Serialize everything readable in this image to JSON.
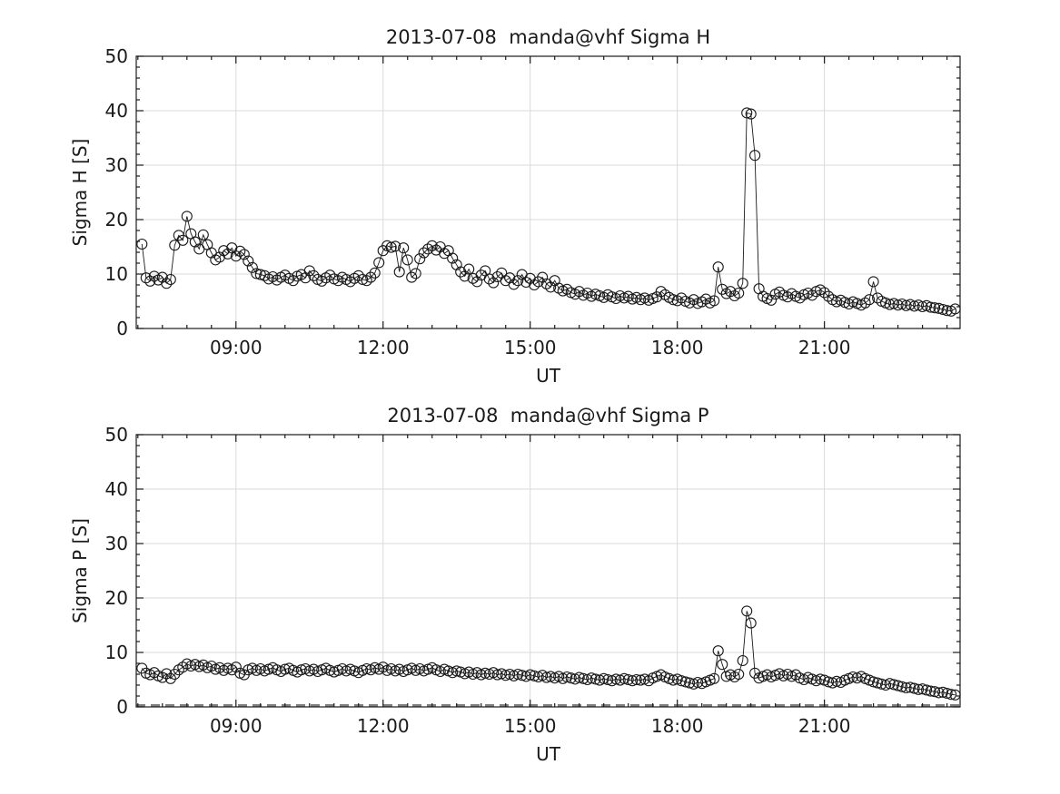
{
  "figure": {
    "background": "#ffffff",
    "text_color": "#1a1a1a",
    "grid_color": "#d9d9d9",
    "axis_color": "#1a1a1a",
    "marker_color": "#1a1a1a",
    "dashed_line_color": "#808080"
  },
  "chart_data": [
    {
      "type": "line",
      "title": "2013-07-08  manda@vhf Sigma H",
      "xlabel": "UT",
      "ylabel": "Sigma H [S]",
      "ylim": [
        0,
        50
      ],
      "yticks": [
        0,
        10,
        20,
        30,
        40,
        50
      ],
      "minor_y_step": 2,
      "xlim_minutes": [
        418,
        1426
      ],
      "xticks": [
        {
          "minute": 540,
          "label": "09:00"
        },
        {
          "minute": 720,
          "label": "12:00"
        },
        {
          "minute": 900,
          "label": "15:00"
        },
        {
          "minute": 1080,
          "label": "18:00"
        },
        {
          "minute": 1260,
          "label": "21:00"
        }
      ],
      "minor_x_step_minutes": 30,
      "grid": true,
      "legend": "none",
      "marker": "open-circle",
      "series": [
        {
          "name": "sigma_h",
          "t0_minutes": 425,
          "dt_minutes": 5,
          "values": [
            15.5,
            9.3,
            8.7,
            9.6,
            8.9,
            9.4,
            8.3,
            9.0,
            15.3,
            17.1,
            16.2,
            20.6,
            17.4,
            15.9,
            14.6,
            17.2,
            15.4,
            13.9,
            12.6,
            13.1,
            14.3,
            13.7,
            14.8,
            13.3,
            14.2,
            13.6,
            12.4,
            11.2,
            10.1,
            9.9,
            9.7,
            9.1,
            9.5,
            8.9,
            9.4,
            9.8,
            9.2,
            8.8,
            9.6,
            9.9,
            9.3,
            10.6,
            9.7,
            9.0,
            8.7,
            9.3,
            9.8,
            9.1,
            8.8,
            9.4,
            9.0,
            8.6,
            9.2,
            9.7,
            9.0,
            8.8,
            9.4,
            10.2,
            12.1,
            14.3,
            15.2,
            14.9,
            15.1,
            10.4,
            14.8,
            12.6,
            9.4,
            10.1,
            12.8,
            13.9,
            14.6,
            15.2,
            14.4,
            15.0,
            13.8,
            14.3,
            12.9,
            11.7,
            10.4,
            9.6,
            10.9,
            9.2,
            8.6,
            9.8,
            10.6,
            9.1,
            8.4,
            9.5,
            10.2,
            8.8,
            9.3,
            8.1,
            8.8,
            9.9,
            8.5,
            9.2,
            8.0,
            8.6,
            9.4,
            8.2,
            7.6,
            8.8,
            7.4,
            6.9,
            7.2,
            6.6,
            6.3,
            6.8,
            6.1,
            6.5,
            5.9,
            6.3,
            6.0,
            5.7,
            6.2,
            5.8,
            5.5,
            6.0,
            5.6,
            5.9,
            5.4,
            5.7,
            5.3,
            5.6,
            5.2,
            5.5,
            5.8,
            6.8,
            6.2,
            5.7,
            5.3,
            5.1,
            5.6,
            5.0,
            4.7,
            5.3,
            4.6,
            4.9,
            5.4,
            4.7,
            5.1,
            11.3,
            7.2,
            6.4,
            6.8,
            6.0,
            6.5,
            8.3,
            39.6,
            39.4,
            31.8,
            7.3,
            5.9,
            5.5,
            5.2,
            6.3,
            6.7,
            6.1,
            5.8,
            6.4,
            5.9,
            5.6,
            6.2,
            6.5,
            6.1,
            6.8,
            7.1,
            6.6,
            5.9,
            5.3,
            4.9,
            5.2,
            4.8,
            4.5,
            4.9,
            4.6,
            4.3,
            4.7,
            5.3,
            8.6,
            5.6,
            5.0,
            4.7,
            4.4,
            4.6,
            4.3,
            4.5,
            4.2,
            4.4,
            4.1,
            4.3,
            4.0,
            4.2,
            3.9,
            3.8,
            3.7,
            3.5,
            3.3,
            3.2,
            3.6
          ]
        }
      ]
    },
    {
      "type": "line",
      "title": "2013-07-08  manda@vhf Sigma P",
      "xlabel": "UT",
      "ylabel": "Sigma P [S]",
      "ylim": [
        0,
        50
      ],
      "yticks": [
        0,
        10,
        20,
        30,
        40,
        50
      ],
      "minor_y_step": 2,
      "xlim_minutes": [
        418,
        1426
      ],
      "xticks": [
        {
          "minute": 540,
          "label": "09:00"
        },
        {
          "minute": 720,
          "label": "12:00"
        },
        {
          "minute": 900,
          "label": "15:00"
        },
        {
          "minute": 1080,
          "label": "18:00"
        },
        {
          "minute": 1260,
          "label": "21:00"
        }
      ],
      "minor_x_step_minutes": 30,
      "grid": true,
      "legend": "none",
      "marker": "open-circle",
      "zero_line": {
        "y": 0.3,
        "style": "dashed",
        "color": "#808080"
      },
      "series": [
        {
          "name": "sigma_p",
          "t0_minutes": 425,
          "dt_minutes": 5,
          "values": [
            7.1,
            6.2,
            5.9,
            6.3,
            5.7,
            5.4,
            6.1,
            5.2,
            6.0,
            6.8,
            7.3,
            7.9,
            7.5,
            7.8,
            7.4,
            7.7,
            7.2,
            7.5,
            6.9,
            7.2,
            6.7,
            7.1,
            6.8,
            7.3,
            6.2,
            5.9,
            6.8,
            7.1,
            6.7,
            7.0,
            6.6,
            6.9,
            7.2,
            6.8,
            6.5,
            6.9,
            7.1,
            6.7,
            6.4,
            6.8,
            7.0,
            6.6,
            6.9,
            6.5,
            6.8,
            7.1,
            6.7,
            6.4,
            6.7,
            7.0,
            6.6,
            6.9,
            6.6,
            6.3,
            6.7,
            7.0,
            6.8,
            7.2,
            6.9,
            7.3,
            6.7,
            7.0,
            6.6,
            6.9,
            6.5,
            6.8,
            7.1,
            6.7,
            7.0,
            6.6,
            6.9,
            7.2,
            6.8,
            6.5,
            6.9,
            6.6,
            6.3,
            6.6,
            6.4,
            6.1,
            6.4,
            6.0,
            6.3,
            5.9,
            6.2,
            6.0,
            6.3,
            5.9,
            6.1,
            5.8,
            6.0,
            5.7,
            6.0,
            5.8,
            5.6,
            5.9,
            5.7,
            5.5,
            5.8,
            5.4,
            5.6,
            5.3,
            5.6,
            5.2,
            5.5,
            5.3,
            5.1,
            5.4,
            5.2,
            5.0,
            5.3,
            5.1,
            4.9,
            5.2,
            5.0,
            4.8,
            5.1,
            4.9,
            5.2,
            5.0,
            4.8,
            5.0,
            4.9,
            5.1,
            4.8,
            5.3,
            5.6,
            5.9,
            5.5,
            5.2,
            4.9,
            5.1,
            4.8,
            4.6,
            4.4,
            4.2,
            4.5,
            4.3,
            4.6,
            4.9,
            5.2,
            10.3,
            7.8,
            5.6,
            5.9,
            5.5,
            6.0,
            8.5,
            17.6,
            15.4,
            6.2,
            5.3,
            5.6,
            5.9,
            5.5,
            5.8,
            6.1,
            5.7,
            6.0,
            5.6,
            5.9,
            5.3,
            5.0,
            5.4,
            5.1,
            4.8,
            5.1,
            4.9,
            4.6,
            4.4,
            4.7,
            4.5,
            4.9,
            5.2,
            5.5,
            5.3,
            5.6,
            5.2,
            4.9,
            4.6,
            4.4,
            4.2,
            4.0,
            4.3,
            4.1,
            3.9,
            3.7,
            3.5,
            3.6,
            3.4,
            3.2,
            3.3,
            3.1,
            2.9,
            2.8,
            2.6,
            2.7,
            2.5,
            2.3,
            2.2
          ]
        }
      ]
    }
  ]
}
